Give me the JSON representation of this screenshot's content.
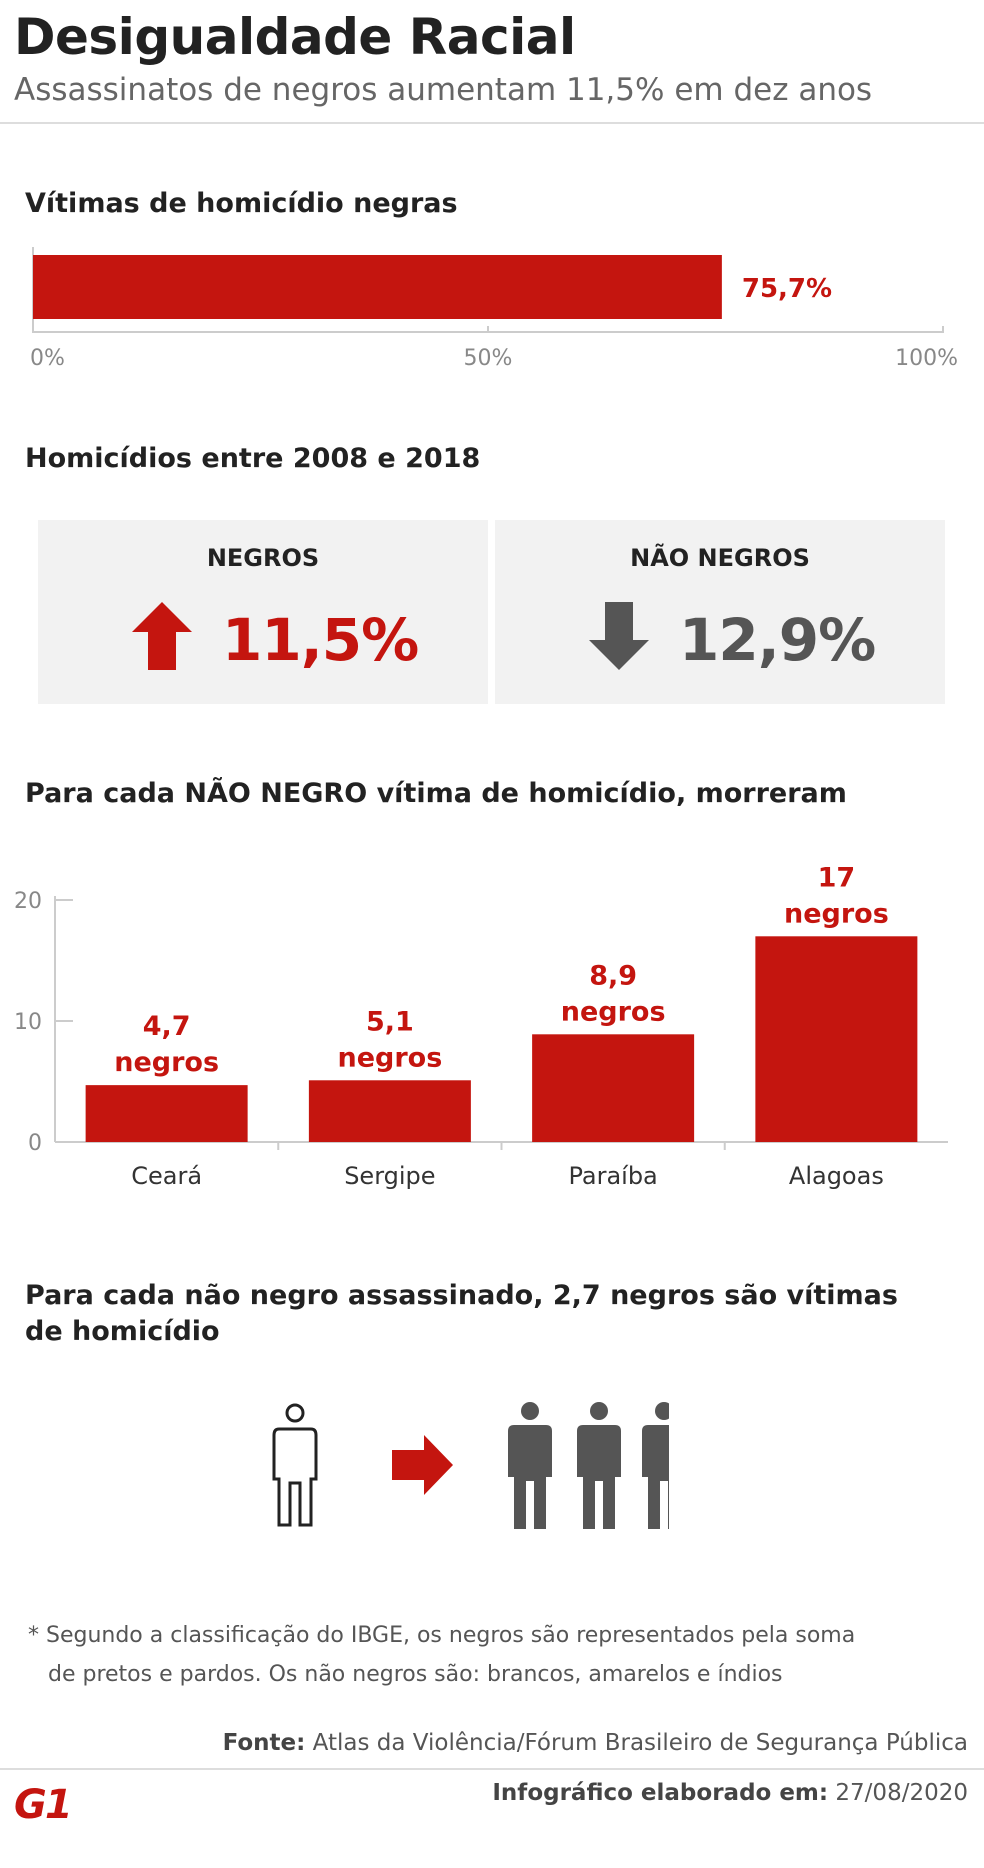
{
  "header": {
    "title": "Desigualdade Racial",
    "subtitle": "Assassinatos de negros aumentam 11,5% em dez anos"
  },
  "colors": {
    "red": "#c4150f",
    "gray": "#555555",
    "box_bg": "#f2f2f2"
  },
  "section1": {
    "heading": "Vítimas de homicídio negras",
    "value_label": "75,7%",
    "ticks": [
      "0%",
      "50%",
      "100%"
    ]
  },
  "section2": {
    "heading": "Homicídios entre 2008 e 2018",
    "negros": {
      "label": "NEGROS",
      "value": "11,5%",
      "icon": "arrow-up-icon"
    },
    "nao_negros": {
      "label": "NÃO NEGROS",
      "value": "12,9%",
      "icon": "arrow-down-icon"
    }
  },
  "section3": {
    "heading": "Para cada NÃO NEGRO vítima de homicídio, morreram",
    "data_labels": [
      [
        "4,7",
        "negros"
      ],
      [
        "5,1",
        "negros"
      ],
      [
        "8,9",
        "negros"
      ],
      [
        "17",
        "negros"
      ]
    ]
  },
  "section4": {
    "heading": "Para cada não negro assassinado, 2,7 negros são vítimas de homicídio",
    "icons": [
      "person-outline-icon",
      "arrow-right-icon",
      "person-solid-icon"
    ]
  },
  "footer": {
    "note_line1": "* Segundo a classificação do IBGE, os negros são representados pela soma",
    "note_line2": "de pretos e pardos. Os não negros são: brancos, amarelos e índios",
    "source_label": "Fonte:",
    "source_text": " Atlas da Violência/Fórum Brasileiro de Segurança Pública",
    "made_label": "Infográfico elaborado em:",
    "made_date": " 27/08/2020",
    "logo": "G1"
  },
  "chart_data": [
    {
      "type": "bar",
      "orientation": "horizontal",
      "categories": [
        "Vítimas de homicídio negras"
      ],
      "values": [
        75.7
      ],
      "xlim": [
        0,
        100
      ]
    },
    {
      "type": "bar",
      "categories": [
        "Ceará",
        "Sergipe",
        "Paraíba",
        "Alagoas"
      ],
      "values": [
        4.7,
        5.1,
        8.9,
        17
      ],
      "ylim": [
        0,
        20
      ],
      "yticks": [
        0,
        10,
        20
      ],
      "grid": false
    }
  ]
}
